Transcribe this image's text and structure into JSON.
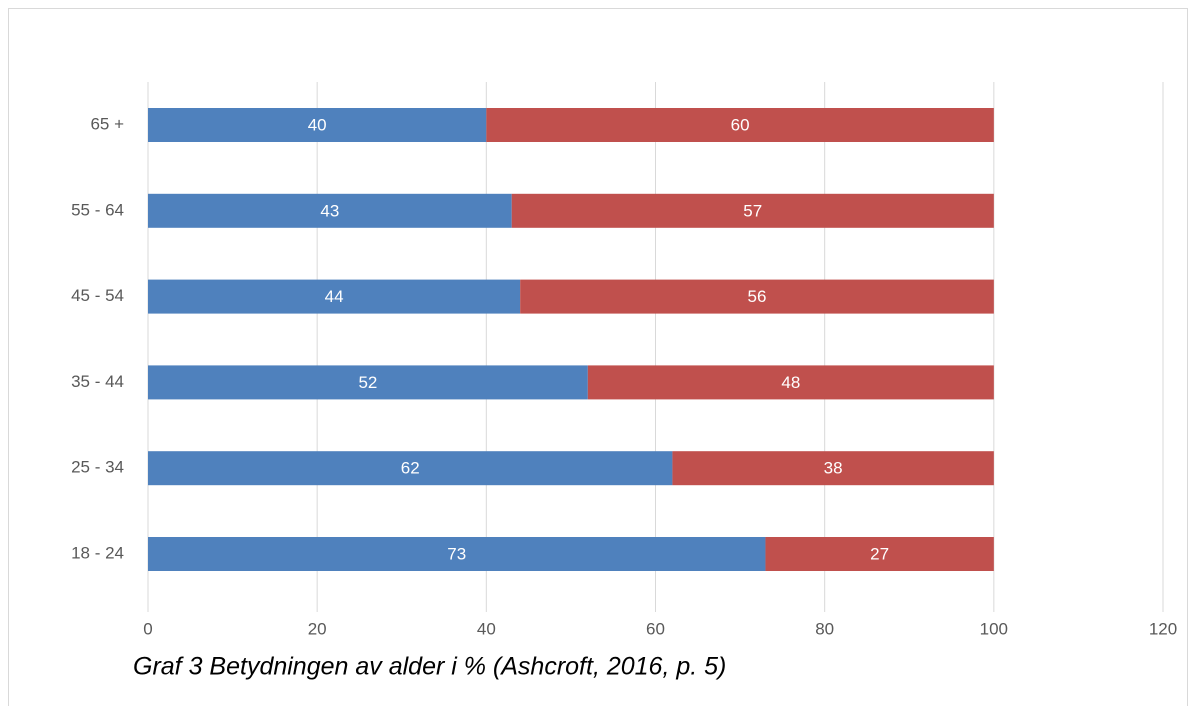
{
  "chart_data": {
    "type": "stacked_bar_horizontal",
    "title": "Graf 3 Betydningen av alder i % (Ashcroft, 2016, p. 5)",
    "categories": [
      "65 +",
      "55 - 64",
      "45 - 54",
      "35 - 44",
      "25 - 34",
      "18 - 24"
    ],
    "series": [
      {
        "color": "#4f81bd",
        "values": [
          40,
          43,
          44,
          52,
          62,
          73
        ]
      },
      {
        "color": "#c0504d",
        "values": [
          60,
          57,
          56,
          48,
          38,
          27
        ]
      }
    ],
    "xlim": [
      0,
      120
    ],
    "xticks": [
      0,
      20,
      40,
      60,
      80,
      100,
      120
    ],
    "grid": true,
    "data_labels": true
  }
}
